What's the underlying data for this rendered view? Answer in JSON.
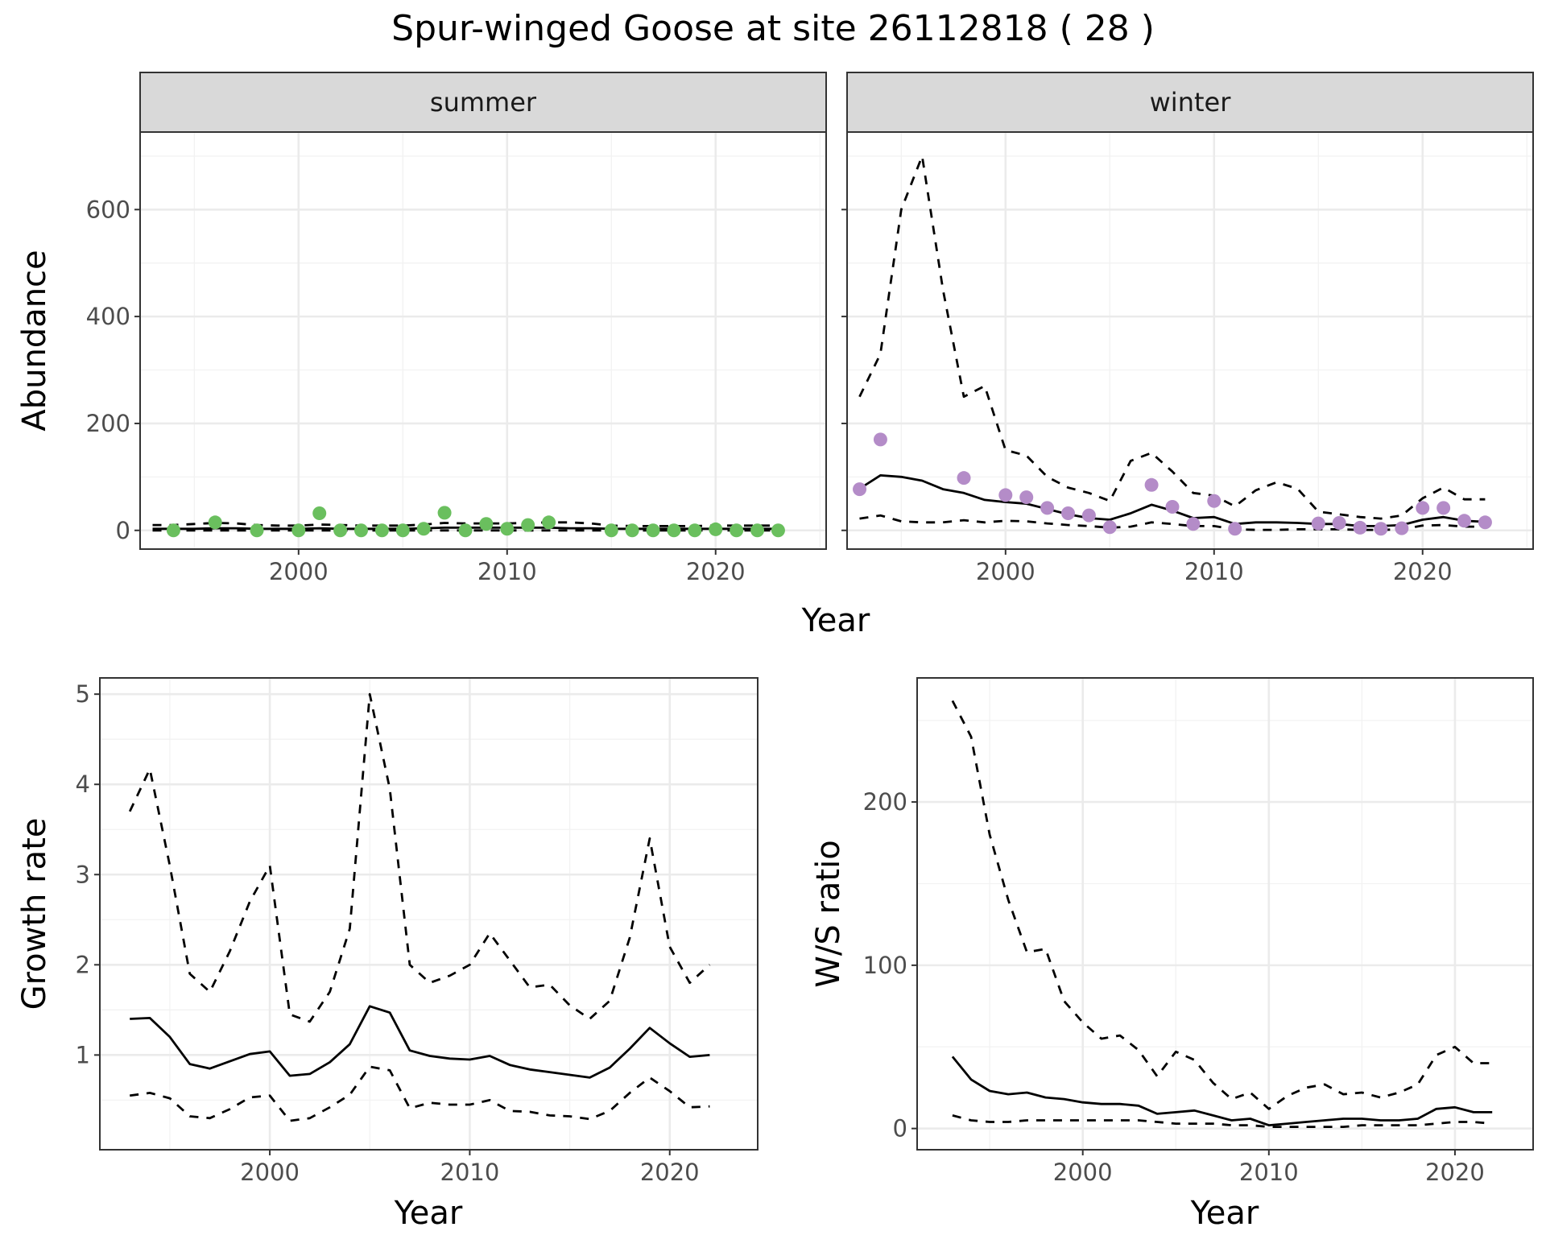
{
  "figure": {
    "title": "Spur-winged Goose at site 26112818 ( 28 )"
  },
  "colors": {
    "summer_points": "#6abf5e",
    "winter_points": "#b48cc8",
    "line": "#000000",
    "strip_bg": "#d9d9d9",
    "grid": "#ebebeb"
  },
  "chart_data": [
    {
      "type": "line",
      "panel": "abundance-summer",
      "facet_label": "summer",
      "xlabel": "",
      "ylabel": "Abundance",
      "xlim": [
        1992.4,
        2025.3
      ],
      "ylim": [
        -35,
        745
      ],
      "x_ticks": [
        2000,
        2010,
        2020
      ],
      "y_ticks": [
        0,
        200,
        400,
        600
      ],
      "grid": true,
      "series": [
        {
          "role": "estimate",
          "style": "solid",
          "x": [
            1993,
            1994,
            1995,
            1996,
            1997,
            1998,
            1999,
            2000,
            2001,
            2002,
            2003,
            2004,
            2005,
            2006,
            2007,
            2008,
            2009,
            2010,
            2011,
            2012,
            2013,
            2014,
            2015,
            2016,
            2017,
            2018,
            2019,
            2020,
            2021,
            2022,
            2023
          ],
          "y": [
            3,
            3,
            3,
            4,
            4,
            3,
            3,
            3,
            4,
            3,
            3,
            3,
            3,
            4,
            5,
            5,
            5,
            5,
            5,
            5,
            4,
            4,
            3,
            3,
            3,
            3,
            3,
            3,
            3,
            3,
            3
          ]
        },
        {
          "role": "upper",
          "style": "dashed",
          "x": [
            1993,
            1994,
            1995,
            1996,
            1997,
            1998,
            1999,
            2000,
            2001,
            2002,
            2003,
            2004,
            2005,
            2006,
            2007,
            2008,
            2009,
            2010,
            2011,
            2012,
            2013,
            2014,
            2015,
            2016,
            2017,
            2018,
            2019,
            2020,
            2021,
            2022,
            2023
          ],
          "y": [
            10,
            10,
            12,
            14,
            13,
            10,
            9,
            9,
            11,
            10,
            9,
            9,
            9,
            11,
            14,
            13,
            13,
            13,
            14,
            15,
            15,
            13,
            9,
            8,
            8,
            8,
            8,
            9,
            9,
            9,
            9
          ]
        },
        {
          "role": "lower",
          "style": "dashed",
          "x": [
            1993,
            1994,
            1995,
            1996,
            1997,
            1998,
            1999,
            2000,
            2001,
            2002,
            2003,
            2004,
            2005,
            2006,
            2007,
            2008,
            2009,
            2010,
            2011,
            2012,
            2013,
            2014,
            2015,
            2016,
            2017,
            2018,
            2019,
            2020,
            2021,
            2022,
            2023
          ],
          "y": [
            0,
            0,
            0,
            0,
            0,
            0,
            0,
            0,
            0,
            0,
            0,
            0,
            0,
            0,
            0,
            0,
            0,
            0,
            0,
            0,
            0,
            0,
            0,
            0,
            0,
            0,
            0,
            0,
            0,
            0,
            0
          ]
        },
        {
          "role": "observed",
          "style": "points",
          "x": [
            1994,
            1996,
            1998,
            2000,
            2001,
            2002,
            2003,
            2004,
            2005,
            2006,
            2007,
            2008,
            2009,
            2010,
            2011,
            2012,
            2015,
            2016,
            2017,
            2018,
            2019,
            2020,
            2021,
            2022,
            2023
          ],
          "y": [
            0,
            15,
            0,
            0,
            32,
            0,
            0,
            0,
            0,
            3,
            33,
            0,
            12,
            3,
            10,
            15,
            0,
            0,
            0,
            0,
            0,
            2,
            0,
            0,
            0
          ]
        }
      ]
    },
    {
      "type": "line",
      "panel": "abundance-winter",
      "facet_label": "winter",
      "xlabel": "",
      "ylabel": "",
      "xlim": [
        1992.4,
        2025.3
      ],
      "ylim": [
        -35,
        745
      ],
      "x_ticks": [
        2000,
        2010,
        2020
      ],
      "y_ticks": [
        0,
        200,
        400,
        600
      ],
      "grid": true,
      "series": [
        {
          "role": "estimate",
          "style": "solid",
          "x": [
            1993,
            1994,
            1995,
            1996,
            1997,
            1998,
            1999,
            2000,
            2001,
            2002,
            2003,
            2004,
            2005,
            2006,
            2007,
            2008,
            2009,
            2010,
            2011,
            2012,
            2013,
            2014,
            2015,
            2016,
            2017,
            2018,
            2019,
            2020,
            2021,
            2022,
            2023
          ],
          "y": [
            78,
            103,
            100,
            93,
            77,
            70,
            57,
            53,
            50,
            40,
            30,
            23,
            20,
            32,
            48,
            37,
            23,
            25,
            12,
            15,
            15,
            14,
            12,
            12,
            8,
            8,
            10,
            20,
            25,
            18,
            16
          ]
        },
        {
          "role": "upper",
          "style": "dashed",
          "x": [
            1993,
            1994,
            1995,
            1996,
            1997,
            1998,
            1999,
            2000,
            2001,
            2002,
            2003,
            2004,
            2005,
            2006,
            2007,
            2008,
            2009,
            2010,
            2011,
            2012,
            2013,
            2014,
            2015,
            2016,
            2017,
            2018,
            2019,
            2020,
            2021,
            2022,
            2023
          ],
          "y": [
            250,
            330,
            600,
            700,
            450,
            250,
            270,
            150,
            140,
            100,
            80,
            70,
            55,
            130,
            145,
            110,
            70,
            65,
            45,
            75,
            90,
            78,
            35,
            30,
            25,
            22,
            28,
            60,
            80,
            58,
            58
          ]
        },
        {
          "role": "lower",
          "style": "dashed",
          "x": [
            1993,
            1994,
            1995,
            1996,
            1997,
            1998,
            1999,
            2000,
            2001,
            2002,
            2003,
            2004,
            2005,
            2006,
            2007,
            2008,
            2009,
            2010,
            2011,
            2012,
            2013,
            2014,
            2015,
            2016,
            2017,
            2018,
            2019,
            2020,
            2021,
            2022,
            2023
          ],
          "y": [
            22,
            28,
            17,
            15,
            15,
            19,
            15,
            18,
            17,
            13,
            10,
            8,
            5,
            7,
            15,
            12,
            8,
            8,
            2,
            1,
            1,
            2,
            2,
            2,
            1,
            1,
            2,
            9,
            10,
            7,
            7
          ]
        },
        {
          "role": "observed",
          "style": "points",
          "x": [
            1993,
            1994,
            1998,
            2000,
            2001,
            2002,
            2003,
            2004,
            2005,
            2007,
            2008,
            2009,
            2010,
            2011,
            2015,
            2016,
            2017,
            2018,
            2019,
            2020,
            2021,
            2022,
            2023
          ],
          "y": [
            77,
            170,
            98,
            66,
            62,
            42,
            32,
            28,
            6,
            85,
            44,
            12,
            55,
            3,
            13,
            14,
            5,
            3,
            4,
            42,
            42,
            18,
            15
          ]
        }
      ]
    },
    {
      "type": "line",
      "panel": "growth-rate",
      "xlabel": "Year",
      "ylabel": "Growth rate",
      "xlim": [
        1991.5,
        2024.4
      ],
      "ylim": [
        -0.05,
        5.18
      ],
      "x_ticks": [
        2000,
        2010,
        2020
      ],
      "y_ticks": [
        1,
        2,
        3,
        4,
        5
      ],
      "grid": true,
      "series": [
        {
          "role": "estimate",
          "style": "solid",
          "x": [
            1993,
            1994,
            1995,
            1996,
            1997,
            1998,
            1999,
            2000,
            2001,
            2002,
            2003,
            2004,
            2005,
            2006,
            2007,
            2008,
            2009,
            2010,
            2011,
            2012,
            2013,
            2014,
            2015,
            2016,
            2017,
            2018,
            2019,
            2020,
            2021,
            2022
          ],
          "y": [
            1.4,
            1.41,
            1.2,
            0.9,
            0.85,
            0.93,
            1.01,
            1.04,
            0.77,
            0.79,
            0.92,
            1.12,
            1.54,
            1.47,
            1.05,
            0.99,
            0.96,
            0.95,
            0.99,
            0.89,
            0.84,
            0.81,
            0.78,
            0.75,
            0.86,
            1.07,
            1.3,
            1.13,
            0.98,
            1.0
          ]
        },
        {
          "role": "upper",
          "style": "dashed",
          "x": [
            1993,
            1994,
            1995,
            1996,
            1997,
            1998,
            1999,
            2000,
            2001,
            2002,
            2003,
            2004,
            2005,
            2006,
            2007,
            2008,
            2009,
            2010,
            2011,
            2012,
            2013,
            2014,
            2015,
            2016,
            2017,
            2018,
            2019,
            2020,
            2021,
            2022
          ],
          "y": [
            3.7,
            4.17,
            3.1,
            1.9,
            1.7,
            2.15,
            2.7,
            3.1,
            1.45,
            1.37,
            1.7,
            2.4,
            5.0,
            3.95,
            2.0,
            1.8,
            1.88,
            2.0,
            2.35,
            2.05,
            1.75,
            1.78,
            1.55,
            1.4,
            1.6,
            2.3,
            3.4,
            2.2,
            1.8,
            2.0
          ]
        },
        {
          "role": "lower",
          "style": "dashed",
          "x": [
            1993,
            1994,
            1995,
            1996,
            1997,
            1998,
            1999,
            2000,
            2001,
            2002,
            2003,
            2004,
            2005,
            2006,
            2007,
            2008,
            2009,
            2010,
            2011,
            2012,
            2013,
            2014,
            2015,
            2016,
            2017,
            2018,
            2019,
            2020,
            2021,
            2022
          ],
          "y": [
            0.55,
            0.58,
            0.52,
            0.32,
            0.3,
            0.4,
            0.53,
            0.55,
            0.27,
            0.3,
            0.42,
            0.56,
            0.87,
            0.83,
            0.41,
            0.47,
            0.45,
            0.45,
            0.5,
            0.38,
            0.37,
            0.33,
            0.32,
            0.29,
            0.38,
            0.58,
            0.75,
            0.6,
            0.42,
            0.43
          ]
        }
      ]
    },
    {
      "type": "line",
      "panel": "ws-ratio",
      "xlabel": "Year",
      "ylabel": "W/S ratio",
      "xlim": [
        1991.1,
        2024.2
      ],
      "ylim": [
        -13,
        276
      ],
      "x_ticks": [
        2000,
        2010,
        2020
      ],
      "y_ticks": [
        0,
        100,
        200
      ],
      "grid": true,
      "series": [
        {
          "role": "estimate",
          "style": "solid",
          "x": [
            1993,
            1994,
            1995,
            1996,
            1997,
            1998,
            1999,
            2000,
            2001,
            2002,
            2003,
            2004,
            2005,
            2006,
            2007,
            2008,
            2009,
            2010,
            2011,
            2012,
            2013,
            2014,
            2015,
            2016,
            2017,
            2018,
            2019,
            2020,
            2021,
            2022
          ],
          "y": [
            44,
            30,
            23,
            21,
            22,
            19,
            18,
            16,
            15,
            15,
            14,
            9,
            10,
            11,
            8,
            5,
            6,
            2,
            3,
            4,
            5,
            6,
            6,
            5,
            5,
            6,
            12,
            13,
            10,
            10
          ]
        },
        {
          "role": "upper",
          "style": "dashed",
          "x": [
            1993,
            1994,
            1995,
            1996,
            1997,
            1998,
            1999,
            2000,
            2001,
            2002,
            2003,
            2004,
            2005,
            2006,
            2007,
            2008,
            2009,
            2010,
            2011,
            2012,
            2013,
            2014,
            2015,
            2016,
            2017,
            2018,
            2019,
            2020,
            2021,
            2022
          ],
          "y": [
            262,
            240,
            180,
            140,
            108,
            110,
            78,
            65,
            55,
            57,
            48,
            32,
            47,
            42,
            28,
            18,
            22,
            12,
            20,
            25,
            27,
            21,
            22,
            19,
            22,
            27,
            45,
            50,
            40,
            40
          ]
        },
        {
          "role": "lower",
          "style": "dashed",
          "x": [
            1993,
            1994,
            1995,
            1996,
            1997,
            1998,
            1999,
            2000,
            2001,
            2002,
            2003,
            2004,
            2005,
            2006,
            2007,
            2008,
            2009,
            2010,
            2011,
            2012,
            2013,
            2014,
            2015,
            2016,
            2017,
            2018,
            2019,
            2020,
            2021,
            2022
          ],
          "y": [
            8,
            5,
            4,
            4,
            5,
            5,
            5,
            5,
            5,
            5,
            5,
            4,
            3,
            3,
            3,
            2,
            2,
            1,
            1,
            1,
            1,
            1,
            2,
            2,
            2,
            2,
            3,
            4,
            4,
            3
          ]
        }
      ]
    }
  ]
}
